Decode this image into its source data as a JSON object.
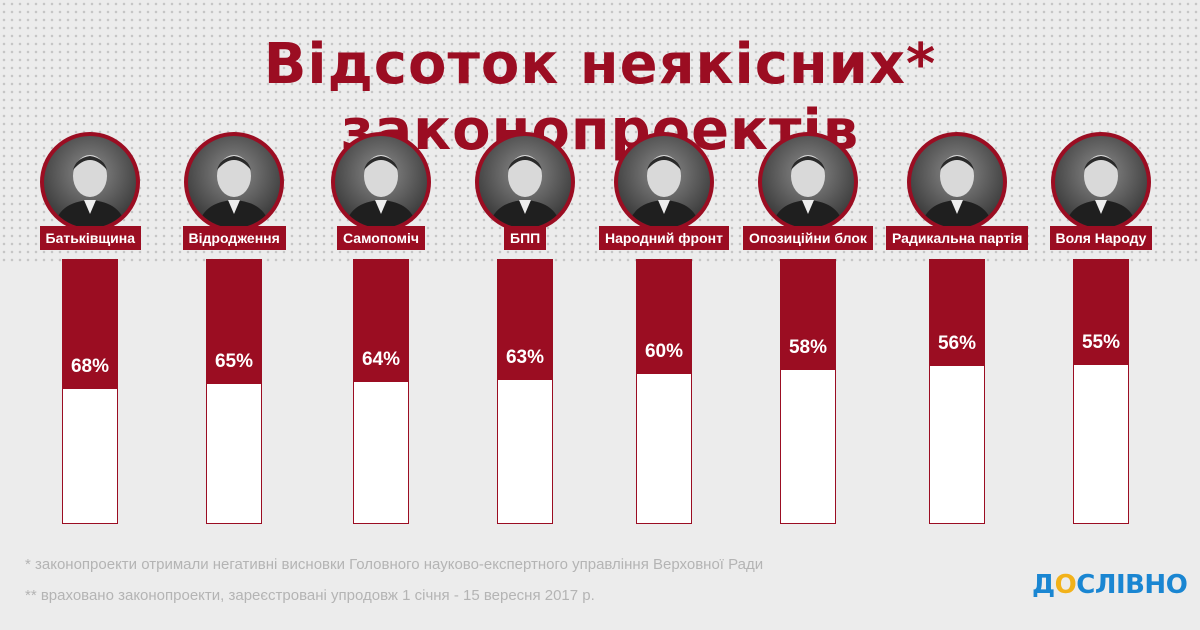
{
  "title": "Відсоток неякісних* законопроектів",
  "colors": {
    "accent": "#9b0d22",
    "bar_empty": "#ffffff",
    "background": "#ececec",
    "footnote": "#b4b4b4",
    "logo_blue": "#1a86d2",
    "logo_yellow": "#f2b21a"
  },
  "chart_data": {
    "type": "bar",
    "categories": [
      "Батьківщина",
      "Відродження",
      "Самопоміч",
      "БПП",
      "Народний фронт",
      "Опозиційни блок",
      "Радикальна партія",
      "Воля Народу"
    ],
    "values": [
      68,
      65,
      64,
      63,
      60,
      58,
      56,
      55
    ],
    "value_labels": [
      "68%",
      "65%",
      "64%",
      "63%",
      "60%",
      "58%",
      "56%",
      "55%"
    ],
    "ylim": [
      0,
      100
    ],
    "title": "Відсоток неякісних* законопроектів",
    "xlabel": "",
    "ylabel": "",
    "grid": false,
    "legend": "none"
  },
  "footnotes": [
    "* законопроекти отримали негативні висновки Головного науково-експертного управління Верховної Ради",
    "** враховано законопроекти, зареєстровані упродовж 1 січня - 15 вересня 2017 р."
  ],
  "logo": "ДОСЛІВНО"
}
